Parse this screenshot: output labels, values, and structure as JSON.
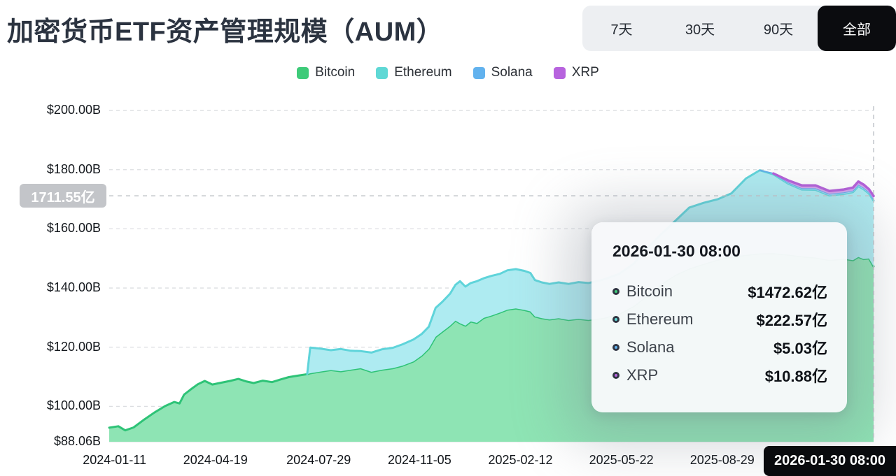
{
  "header": {
    "title": "加密货币ETF资产管理规模（AUM）"
  },
  "range_selector": {
    "options": [
      {
        "label": "7天",
        "active": false
      },
      {
        "label": "30天",
        "active": false
      },
      {
        "label": "90天",
        "active": false
      },
      {
        "label": "全部",
        "active": true
      }
    ]
  },
  "legend": {
    "items": [
      {
        "label": "Bitcoin",
        "color": "#3ecb79"
      },
      {
        "label": "Ethereum",
        "color": "#5fd8d5"
      },
      {
        "label": "Solana",
        "color": "#62b2ee"
      },
      {
        "label": "XRP",
        "color": "#b763de"
      }
    ]
  },
  "y_axis_hover_badge": {
    "text": "1711.55亿"
  },
  "x_axis_hover_badge": {
    "text": "2026-01-30 08:00"
  },
  "tooltip": {
    "title": "2026-01-30 08:00",
    "rows": [
      {
        "name": "Bitcoin",
        "value": "$1472.62亿",
        "color": "#3ecb79"
      },
      {
        "name": "Ethereum",
        "value": "$222.57亿",
        "color": "#5fd8d5"
      },
      {
        "name": "Solana",
        "value": "$5.03亿",
        "color": "#62b2ee"
      },
      {
        "name": "XRP",
        "value": "$10.88亿",
        "color": "#b763de"
      }
    ]
  },
  "chart_data": {
    "type": "area",
    "stacked": true,
    "title": "加密货币ETF资产管理规模（AUM）",
    "unit": "$B",
    "grid": true,
    "legend_position": "top",
    "y_range": [
      88.06,
      201.9
    ],
    "y_ticks": [
      {
        "v": 88.06,
        "label": "$88.06B"
      },
      {
        "v": 100,
        "label": "$100.00B"
      },
      {
        "v": 120,
        "label": "$120.00B"
      },
      {
        "v": 140,
        "label": "$140.00B"
      },
      {
        "v": 160,
        "label": "$160.00B"
      },
      {
        "v": 180,
        "label": "$180.00B"
      },
      {
        "v": 200,
        "label": "$200.00B"
      }
    ],
    "x_ticks": [
      {
        "t": 0.007,
        "label": "2024-01-11"
      },
      {
        "t": 0.139,
        "label": "2024-04-19"
      },
      {
        "t": 0.274,
        "label": "2024-07-29"
      },
      {
        "t": 0.406,
        "label": "2024-11-05"
      },
      {
        "t": 0.538,
        "label": "2025-02-12"
      },
      {
        "t": 0.67,
        "label": "2025-05-22"
      },
      {
        "t": 0.802,
        "label": "2025-08-29"
      }
    ],
    "crosshair": {
      "t": 1.0,
      "label": "2026-01-30 08:00",
      "total_value": 171.155
    },
    "t": [
      0,
      0.012,
      0.021,
      0.032,
      0.046,
      0.059,
      0.073,
      0.085,
      0.092,
      0.098,
      0.107,
      0.116,
      0.125,
      0.135,
      0.146,
      0.158,
      0.169,
      0.18,
      0.189,
      0.201,
      0.213,
      0.224,
      0.235,
      0.247,
      0.259,
      0.263,
      0.277,
      0.29,
      0.303,
      0.316,
      0.329,
      0.343,
      0.357,
      0.371,
      0.384,
      0.398,
      0.409,
      0.418,
      0.427,
      0.436,
      0.446,
      0.453,
      0.459,
      0.466,
      0.473,
      0.481,
      0.49,
      0.5,
      0.511,
      0.521,
      0.532,
      0.543,
      0.551,
      0.557,
      0.566,
      0.576,
      0.588,
      0.601,
      0.614,
      0.627,
      0.647,
      0.667,
      0.686,
      0.704,
      0.723,
      0.741,
      0.759,
      0.778,
      0.796,
      0.814,
      0.833,
      0.851,
      0.869,
      0.888,
      0.906,
      0.924,
      0.942,
      0.961,
      0.973,
      0.98,
      0.987,
      0.994,
      1
    ],
    "series": [
      {
        "name": "Bitcoin",
        "line": "#2ec377",
        "fill": "#8ee4b4",
        "values": [
          92.8,
          93.3,
          91.9,
          92.9,
          95.6,
          97.9,
          100.1,
          101.5,
          101,
          104,
          105.8,
          107.5,
          108.6,
          107.4,
          108,
          108.6,
          109.3,
          108.4,
          107.9,
          108.7,
          108.2,
          109.1,
          109.9,
          110.4,
          110.9,
          111.2,
          111.8,
          112.3,
          111.9,
          112.4,
          112.9,
          111.7,
          112.4,
          112.9,
          113.8,
          115.2,
          117.2,
          119.5,
          123.5,
          125.3,
          127.3,
          129,
          128.1,
          127.3,
          128.7,
          128.2,
          129.9,
          130.7,
          131.7,
          132.7,
          133.1,
          132.6,
          132.1,
          130.4,
          129.8,
          129.4,
          129.8,
          129.2,
          129.6,
          129.2,
          129.9,
          131.3,
          133.9,
          137.5,
          141.5,
          144.5,
          146.6,
          148.2,
          149.6,
          150.6,
          151.2,
          151.7,
          151.8,
          151.3,
          150.7,
          150.3,
          149.5,
          149.9,
          149.4,
          150.5,
          149.8,
          150,
          147.26
        ]
      },
      {
        "name": "Ethereum",
        "line": "#5fd4da",
        "fill": "#aeebf1",
        "values": [
          0,
          0,
          0,
          0,
          0,
          0,
          0,
          0,
          0,
          0,
          0,
          0,
          0,
          0,
          0,
          0,
          0,
          0,
          0,
          0,
          0,
          0,
          0,
          0,
          0,
          8.7,
          7.7,
          6.7,
          7.5,
          6.4,
          5.8,
          6.5,
          6.9,
          6.9,
          7.2,
          7.4,
          7.3,
          7.4,
          9.8,
          10.1,
          10.8,
          12.1,
          14.2,
          13.2,
          13,
          14.1,
          13.4,
          13.4,
          13.1,
          13.3,
          13.3,
          13.2,
          13,
          12.3,
          12.1,
          12,
          12.1,
          12.2,
          12.4,
          12.5,
          13,
          13.5,
          14.3,
          16,
          16.9,
          18.3,
          20.6,
          20.6,
          20.4,
          21.4,
          25.8,
          28.1,
          26.6,
          24,
          22.6,
          22.9,
          21.8,
          21.9,
          23,
          23.9,
          23.6,
          21.9,
          22.26
        ]
      },
      {
        "name": "Solana",
        "line": "#63aeea",
        "fill": "#a5d2f4",
        "values": [
          0,
          0,
          0,
          0,
          0,
          0,
          0,
          0,
          0,
          0,
          0,
          0,
          0,
          0,
          0,
          0,
          0,
          0,
          0,
          0,
          0,
          0,
          0,
          0,
          0,
          0,
          0,
          0,
          0,
          0,
          0,
          0,
          0,
          0,
          0,
          0,
          0,
          0,
          0,
          0,
          0,
          0,
          0,
          0,
          0,
          0,
          0,
          0,
          0,
          0,
          0,
          0,
          0,
          0,
          0,
          0,
          0,
          0,
          0,
          0,
          0,
          0,
          0,
          0,
          0,
          0,
          0,
          0,
          0,
          0,
          0,
          0,
          0.3,
          0.4,
          0.45,
          0.5,
          0.5,
          0.5,
          0.5,
          0.5,
          0.5,
          0.5,
          0.503
        ]
      },
      {
        "name": "XRP",
        "line": "#b45fd9",
        "fill": "#d3a4ec",
        "values": [
          0,
          0,
          0,
          0,
          0,
          0,
          0,
          0,
          0,
          0,
          0,
          0,
          0,
          0,
          0,
          0,
          0,
          0,
          0,
          0,
          0,
          0,
          0,
          0,
          0,
          0,
          0,
          0,
          0,
          0,
          0,
          0,
          0,
          0,
          0,
          0,
          0,
          0,
          0,
          0,
          0,
          0,
          0,
          0,
          0,
          0,
          0,
          0,
          0,
          0,
          0,
          0,
          0,
          0,
          0,
          0,
          0,
          0,
          0,
          0,
          0,
          0,
          0,
          0,
          0,
          0,
          0,
          0,
          0,
          0,
          0,
          0,
          0,
          0.7,
          0.95,
          1,
          1,
          1,
          1.05,
          1.1,
          1.05,
          1,
          1.088
        ]
      }
    ]
  }
}
